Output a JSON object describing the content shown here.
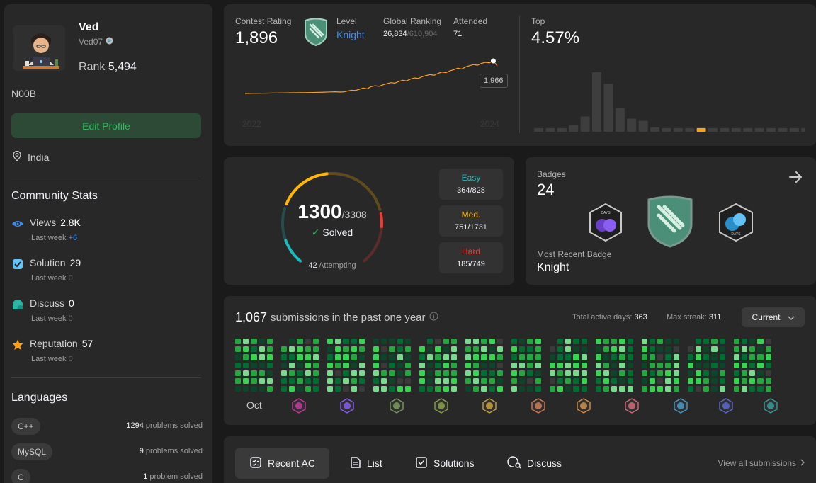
{
  "profile": {
    "name": "Ved",
    "username": "Ved07",
    "rank_label": "Rank",
    "rank_value": "5,494",
    "bio": "N00B",
    "edit_button": "Edit Profile",
    "location": "India"
  },
  "community": {
    "title": "Community Stats",
    "stats": [
      {
        "label": "Views",
        "value": "2.8K",
        "sub": "Last week",
        "delta": "+6",
        "icon": "eye-icon",
        "color": "#3c8cf0"
      },
      {
        "label": "Solution",
        "value": "29",
        "sub": "Last week",
        "delta": "0",
        "icon": "solution-check-icon",
        "color": "#62c1f5"
      },
      {
        "label": "Discuss",
        "value": "0",
        "sub": "Last week",
        "delta": "0",
        "icon": "discuss-bubble-icon",
        "color": "#2bb5a2"
      },
      {
        "label": "Reputation",
        "value": "57",
        "sub": "Last week",
        "delta": "0",
        "icon": "star-icon",
        "color": "#ffa116"
      }
    ]
  },
  "languages": {
    "title": "Languages",
    "items": [
      {
        "name": "C++",
        "count": "1294",
        "unit": "problems solved"
      },
      {
        "name": "MySQL",
        "count": "9",
        "unit": "problems solved"
      },
      {
        "name": "C",
        "count": "1",
        "unit": "problem solved"
      }
    ]
  },
  "contest": {
    "rating_label": "Contest Rating",
    "rating": "1,896",
    "level_label": "Level",
    "level": "Knight",
    "global_label": "Global Ranking",
    "global_rank": "26,834",
    "global_total": "/610,904",
    "attended_label": "Attended",
    "attended": "71",
    "top_label": "Top",
    "top": "4.57%",
    "tooltip": "1,966",
    "x_start": "2022",
    "x_end": "2024",
    "line_color": "#ffa116",
    "rating_series": [
      1500,
      1501,
      1502,
      1502,
      1503,
      1504,
      1505,
      1506,
      1507,
      1508,
      1508,
      1509,
      1510,
      1511,
      1512,
      1512,
      1513,
      1514,
      1516,
      1517,
      1519,
      1521,
      1522,
      1524,
      1520,
      1523,
      1535,
      1546,
      1543,
      1560,
      1578,
      1566,
      1599,
      1610,
      1603,
      1624,
      1640,
      1655,
      1648,
      1672,
      1689,
      1680,
      1706,
      1723,
      1715,
      1741,
      1757,
      1770,
      1761,
      1788,
      1806,
      1797,
      1823,
      1841,
      1862,
      1850,
      1880,
      1898,
      1913,
      1904,
      1931,
      1945,
      1937,
      1966,
      1896
    ],
    "distribution": [
      5,
      5,
      5,
      9,
      21,
      82,
      66,
      33,
      18,
      15,
      6,
      5,
      5,
      5,
      5,
      5,
      5,
      5,
      5,
      5,
      5,
      5,
      5,
      5
    ],
    "highlight_index": 14,
    "bar_color": "#3e3e3e",
    "highlight_color": "#ffa116"
  },
  "solved": {
    "count": "1300",
    "total": "/3308",
    "label": "Solved",
    "attempting_count": "42",
    "attempting_label": "Attempting",
    "difficulties": [
      {
        "name": "Easy",
        "value": "364/828",
        "solved": 364,
        "total": 828,
        "color": "#1cbaba"
      },
      {
        "name": "Med.",
        "value": "751/1731",
        "solved": 751,
        "total": 1731,
        "color": "#ffb700"
      },
      {
        "name": "Hard",
        "value": "185/749",
        "solved": 185,
        "total": 749,
        "color": "#f63737"
      }
    ]
  },
  "badges": {
    "label": "Badges",
    "count": "24",
    "recent_label": "Most Recent Badge",
    "recent": "Knight"
  },
  "submissions": {
    "count": "1,067",
    "text": "submissions in the past one year",
    "active_label": "Total active days:",
    "active_days": "363",
    "streak_label": "Max streak:",
    "streak": "311",
    "selector": "Current",
    "month_label": "Oct"
  },
  "tabs": {
    "items": [
      "Recent AC",
      "List",
      "Solutions",
      "Discuss"
    ],
    "view_all": "View all submissions"
  }
}
